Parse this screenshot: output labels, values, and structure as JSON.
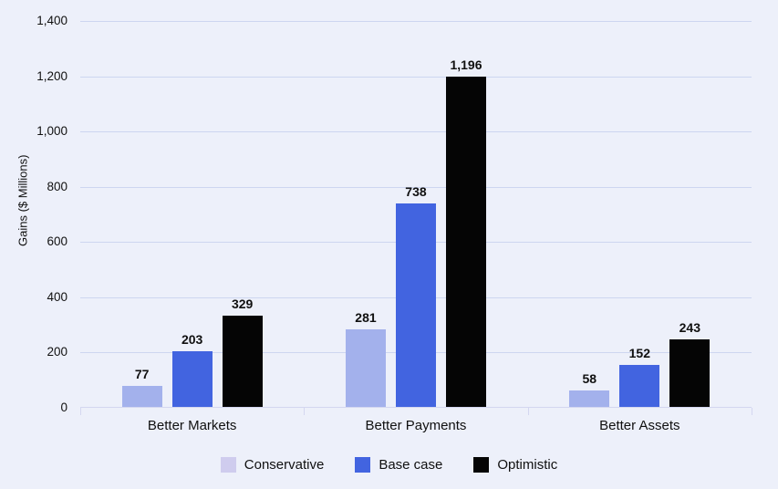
{
  "chart_data": {
    "type": "bar",
    "title": "",
    "xlabel": "",
    "ylabel": "Gains ($ Millions)",
    "categories": [
      "Better Markets",
      "Better Payments",
      "Better Assets"
    ],
    "series": [
      {
        "name": "Conservative",
        "values": [
          77,
          281,
          58
        ],
        "bar_color": "#a3b1ec",
        "legend_color": "#cfccee"
      },
      {
        "name": "Base case",
        "values": [
          203,
          738,
          152
        ],
        "bar_color": "#4264e0",
        "legend_color": "#4264e0"
      },
      {
        "name": "Optimistic",
        "values": [
          329,
          1196,
          243
        ],
        "bar_color": "#050505",
        "legend_color": "#050505"
      }
    ],
    "value_labels": [
      [
        "77",
        "203",
        "329"
      ],
      [
        "281",
        "738",
        "1,196"
      ],
      [
        "58",
        "152",
        "243"
      ]
    ],
    "ylim": [
      0,
      1400
    ],
    "ytick_step": 200,
    "ytick_labels": [
      "0",
      "200",
      "400",
      "600",
      "800",
      "1,000",
      "1,200",
      "1,400"
    ],
    "grid": "horizontal",
    "legend_position": "bottom",
    "value_labels_shown": true
  },
  "colors": {
    "background": "#edf0fa",
    "gridline": "#cdd6f0",
    "axis": "#d4d7f0",
    "text": "#101010"
  }
}
